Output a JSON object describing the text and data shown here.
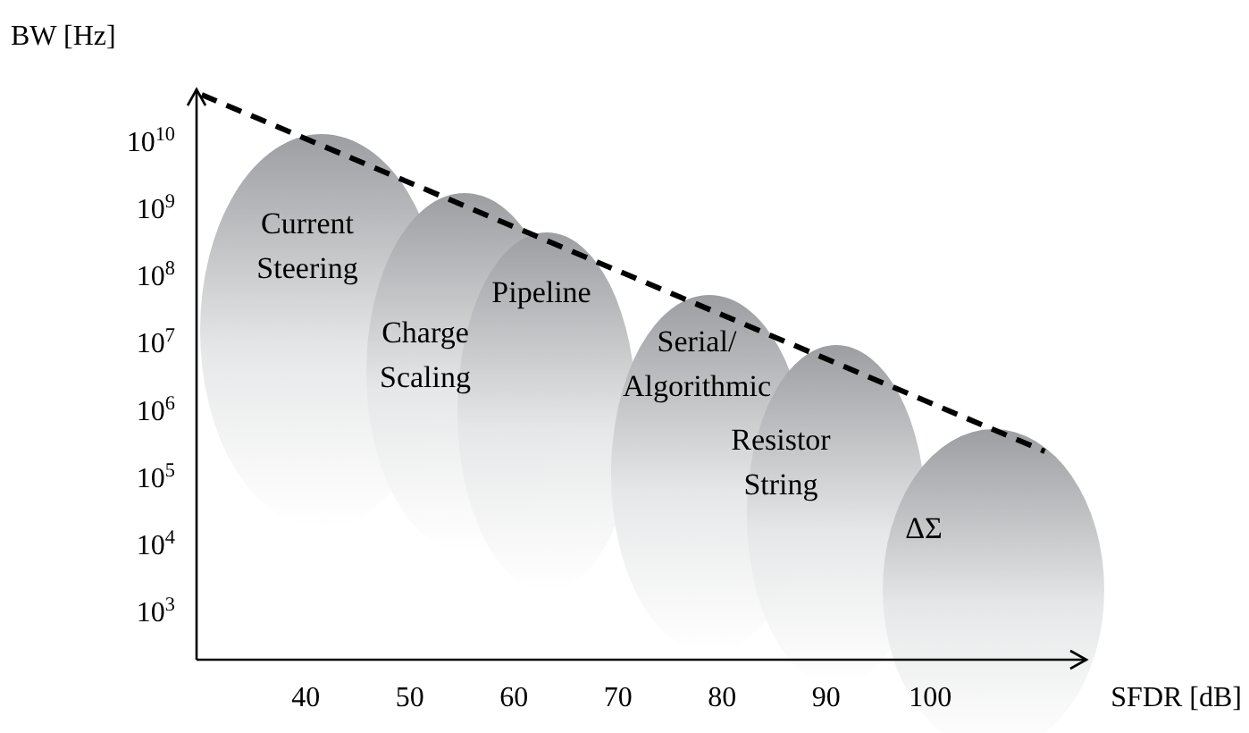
{
  "chart_data": {
    "type": "line",
    "xlabel": "SFDR [dB]",
    "ylabel": "BW [Hz]",
    "log": "y",
    "xlim": [
      29.5,
      115
    ],
    "ylim": [
      200,
      60000000000.0
    ],
    "xticks": [
      40,
      50,
      60,
      70,
      80,
      90,
      100
    ],
    "yticks": [
      {
        "value": 1000,
        "label": "10$^{3}$"
      },
      {
        "value": 10000,
        "label": "10$^{4}$"
      },
      {
        "value": 100000,
        "label": "10$^{5}$"
      },
      {
        "value": 1000000,
        "label": "10$^{6}$"
      },
      {
        "value": 10000000,
        "label": "10$^{7}$"
      },
      {
        "value": 100000000,
        "label": "10$^{8}$"
      },
      {
        "value": 1000000000,
        "label": "10$^{9}$"
      },
      {
        "value": 10000000000,
        "label": "10$^{10}$"
      }
    ],
    "series": [
      {
        "type": "line",
        "x": [
          30,
          111
        ],
        "values": [
          50000000000.0,
          250000.0
        ],
        "color": "#000000",
        "line_style": "dashed"
      }
    ],
    "annotations": [
      "Current\nSteering",
      "Charge\nScaling",
      "Pipeline",
      "Serial/\nAlgorithmic",
      "Resistor\nString",
      "ΔΣ"
    ]
  }
}
